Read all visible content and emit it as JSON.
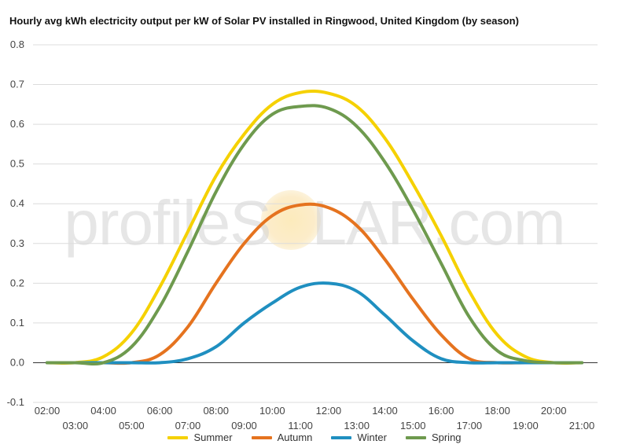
{
  "chart_data": {
    "type": "line",
    "title": "Hourly avg kWh electricity output per kW of Solar PV installed in Ringwood, United Kingdom (by season)",
    "xlabel": "",
    "ylabel": "",
    "ylim": [
      -0.1,
      0.8
    ],
    "yticks": [
      "0.8",
      "0.7",
      "0.6",
      "0.5",
      "0.4",
      "0.3",
      "0.2",
      "0.1",
      "0.0",
      "-0.1"
    ],
    "ytick_values": [
      0.8,
      0.7,
      0.6,
      0.5,
      0.4,
      0.3,
      0.2,
      0.1,
      0.0,
      -0.1
    ],
    "x": [
      "02:00",
      "03:00",
      "04:00",
      "05:00",
      "06:00",
      "07:00",
      "08:00",
      "09:00",
      "10:00",
      "11:00",
      "12:00",
      "13:00",
      "14:00",
      "15:00",
      "16:00",
      "17:00",
      "18:00",
      "19:00",
      "20:00",
      "21:00"
    ],
    "grid": true,
    "legend_position": "bottom",
    "series": [
      {
        "name": "Summer",
        "color": "#f5d100",
        "values": [
          0.0,
          0.0,
          0.015,
          0.075,
          0.19,
          0.33,
          0.47,
          0.575,
          0.65,
          0.68,
          0.678,
          0.645,
          0.565,
          0.45,
          0.32,
          0.18,
          0.07,
          0.015,
          0.0,
          0.0
        ]
      },
      {
        "name": "Autumn",
        "color": "#e5731f",
        "values": [
          0.0,
          0.0,
          0.0,
          0.0,
          0.02,
          0.09,
          0.2,
          0.3,
          0.37,
          0.397,
          0.39,
          0.345,
          0.26,
          0.16,
          0.07,
          0.01,
          0.0,
          0.0,
          0.0,
          0.0
        ]
      },
      {
        "name": "Winter",
        "color": "#1f8fc0",
        "values": [
          0.0,
          0.0,
          0.0,
          0.0,
          0.0,
          0.01,
          0.04,
          0.1,
          0.15,
          0.19,
          0.2,
          0.18,
          0.12,
          0.055,
          0.01,
          0.0,
          0.0,
          0.0,
          0.0,
          0.0
        ]
      },
      {
        "name": "Spring",
        "color": "#6e9a4e",
        "values": [
          0.0,
          0.0,
          0.0,
          0.04,
          0.14,
          0.28,
          0.43,
          0.55,
          0.625,
          0.645,
          0.64,
          0.595,
          0.505,
          0.385,
          0.25,
          0.115,
          0.03,
          0.005,
          0.0,
          0.0
        ]
      }
    ]
  },
  "watermark": {
    "text_pre": "profileS",
    "text_post": "LAR.com"
  }
}
